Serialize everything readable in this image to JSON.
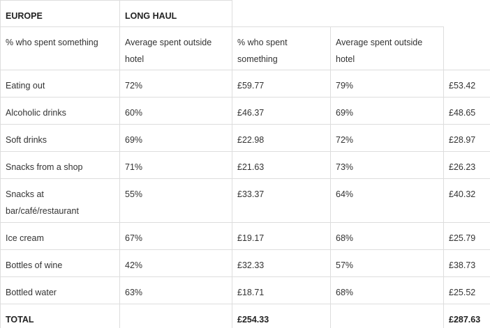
{
  "table": {
    "group_headers": {
      "europe": "EUROPE",
      "long_haul": "LONG HAUL"
    },
    "column_headers": [
      "% who spent something",
      "Average spent outside hotel",
      "% who spent something",
      "Average spent outside hotel"
    ],
    "rows": [
      {
        "item": "Eating out",
        "eu_pct": "72%",
        "eu_avg": "£59.77",
        "lh_pct": "79%",
        "lh_avg": "£53.42"
      },
      {
        "item": "Alcoholic drinks",
        "eu_pct": "60%",
        "eu_avg": "£46.37",
        "lh_pct": "69%",
        "lh_avg": "£48.65"
      },
      {
        "item": "Soft drinks",
        "eu_pct": "69%",
        "eu_avg": "£22.98",
        "lh_pct": "72%",
        "lh_avg": "£28.97"
      },
      {
        "item": "Snacks from a shop",
        "eu_pct": "71%",
        "eu_avg": "£21.63",
        "lh_pct": "73%",
        "lh_avg": "£26.23"
      },
      {
        "item": "Snacks at bar/café/restaurant",
        "eu_pct": "55%",
        "eu_avg": "£33.37",
        "lh_pct": "64%",
        "lh_avg": "£40.32"
      },
      {
        "item": "Ice cream",
        "eu_pct": "67%",
        "eu_avg": "£19.17",
        "lh_pct": "68%",
        "lh_avg": "£25.79"
      },
      {
        "item": "Bottles of wine",
        "eu_pct": "42%",
        "eu_avg": "£32.33",
        "lh_pct": "57%",
        "lh_avg": "£38.73"
      },
      {
        "item": "Bottled water",
        "eu_pct": "63%",
        "eu_avg": "£18.71",
        "lh_pct": "68%",
        "lh_avg": "£25.52"
      }
    ],
    "total": {
      "label": "TOTAL",
      "eu_avg": "£254.33",
      "lh_avg": "£287.63"
    }
  }
}
